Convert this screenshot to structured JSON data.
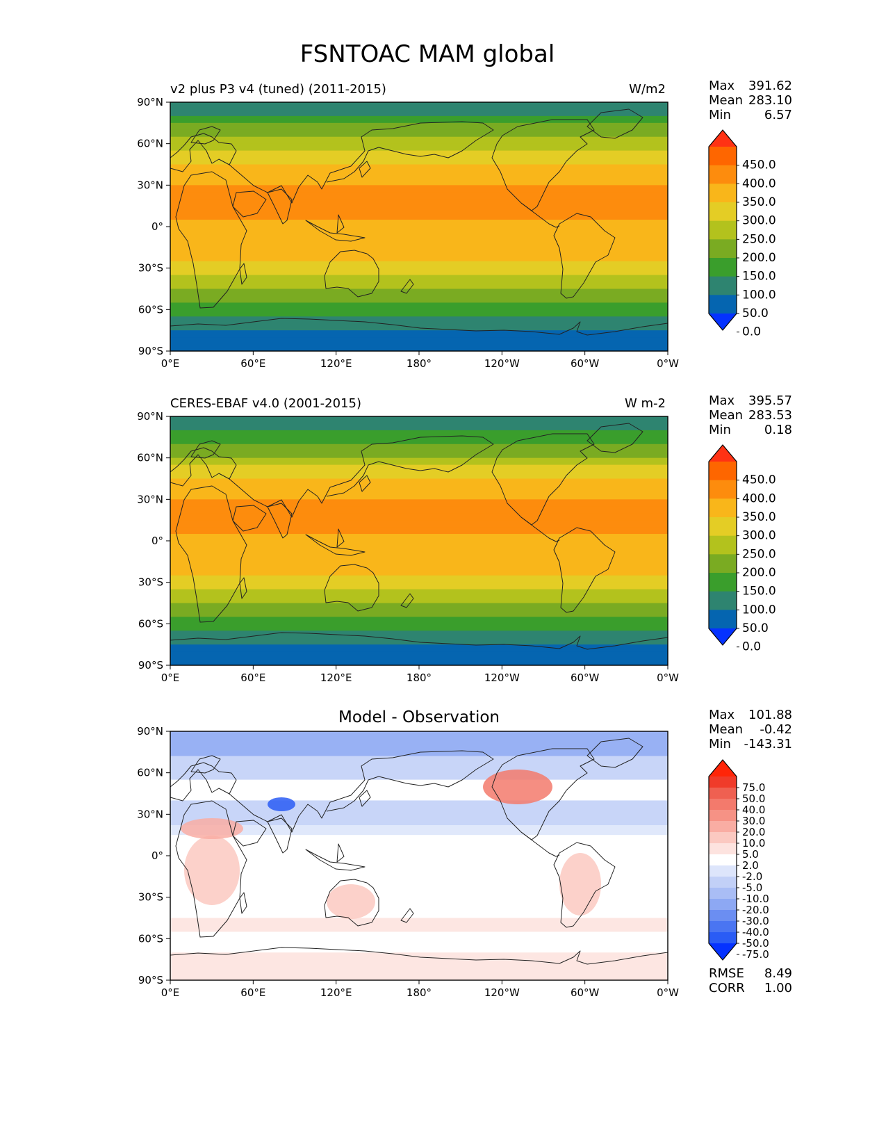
{
  "figure": {
    "title": "FSNTOAC MAM global"
  },
  "colors": {
    "abs": [
      "#0532ff",
      "#0565b0",
      "#2e8470",
      "#3a9e2c",
      "#7aab22",
      "#b3c21d",
      "#e4cd25",
      "#f9b61a",
      "#fd8c0d",
      "#fe6600",
      "#ff3214"
    ],
    "diff": [
      "#0532ff",
      "#2a5cf5",
      "#4a75f2",
      "#6b8ef2",
      "#8da8f3",
      "#a9bdf5",
      "#c2d0f7",
      "#dde5fb",
      "#ffffff",
      "#fde3df",
      "#fbc9c1",
      "#f9ada3",
      "#f69285",
      "#f37a6c",
      "#ef6051",
      "#f03b2a",
      "#ff2508"
    ]
  },
  "panels": [
    {
      "title_left": "v2 plus P3 v4 (tuned) (2011-2015)",
      "title_right": "W/m2",
      "title_center": "",
      "stats": [
        {
          "label": "Max",
          "value": "391.62"
        },
        {
          "label": "Mean",
          "value": "283.10"
        },
        {
          "label": "Min",
          "value": "6.57"
        }
      ]
    },
    {
      "title_left": "CERES-EBAF v4.0 (2001-2015)",
      "title_right": "W m-2",
      "title_center": "",
      "stats": [
        {
          "label": "Max",
          "value": "395.57"
        },
        {
          "label": "Mean",
          "value": "283.53"
        },
        {
          "label": "Min",
          "value": "0.18"
        }
      ]
    },
    {
      "title_left": "",
      "title_right": "",
      "title_center": "Model - Observation",
      "stats": [
        {
          "label": "Max",
          "value": "101.88"
        },
        {
          "label": "Mean",
          "value": "-0.42"
        },
        {
          "label": "Min",
          "value": "-143.31"
        }
      ],
      "extra_stats": [
        {
          "label": "RMSE",
          "value": "8.49"
        },
        {
          "label": "CORR",
          "value": "1.00"
        }
      ]
    }
  ],
  "axes": {
    "lat_ticks": [
      "90°N",
      "60°N",
      "30°N",
      "0°",
      "30°S",
      "60°S",
      "90°S"
    ],
    "lon_ticks": [
      "0°E",
      "60°E",
      "120°E",
      "180°",
      "120°W",
      "60°W",
      "0°W"
    ]
  },
  "colorbars": {
    "abs_labels": [
      "450.0",
      "400.0",
      "350.0",
      "300.0",
      "250.0",
      "200.0",
      "150.0",
      "100.0",
      "50.0",
      "0.0"
    ],
    "diff_labels": [
      "75.0",
      "50.0",
      "40.0",
      "30.0",
      "20.0",
      "10.0",
      "5.0",
      "2.0",
      "-2.0",
      "-5.0",
      "-10.0",
      "-20.0",
      "-30.0",
      "-40.0",
      "-50.0",
      "-75.0"
    ]
  },
  "chart_data": [
    {
      "type": "heatmap",
      "title": "v2 plus P3 v4 (tuned) (2011-2015)",
      "units": "W/m2",
      "x_ticks": [
        "0°E",
        "60°E",
        "120°E",
        "180°",
        "120°W",
        "60°W",
        "0°W"
      ],
      "y_ticks": [
        "90°N",
        "60°N",
        "30°N",
        "0°",
        "30°S",
        "60°S",
        "90°S"
      ],
      "levels": [
        0,
        50,
        100,
        150,
        200,
        250,
        300,
        350,
        400,
        450
      ],
      "zonal_profile": {
        "lat": [
          90,
          80,
          75,
          70,
          65,
          60,
          55,
          50,
          45,
          40,
          35,
          30,
          25,
          20,
          15,
          10,
          5,
          0,
          -5,
          -10,
          -15,
          -20,
          -25,
          -30,
          -35,
          -40,
          -45,
          -50,
          -55,
          -60,
          -65,
          -70,
          -75,
          -80,
          -90
        ],
        "value": [
          75,
          90,
          140,
          165,
          190,
          215,
          245,
          270,
          300,
          320,
          340,
          355,
          360,
          365,
          360,
          355,
          345,
          340,
          340,
          335,
          325,
          310,
          295,
          280,
          255,
          230,
          210,
          180,
          155,
          120,
          100,
          60,
          40,
          40,
          40
        ]
      },
      "stats": {
        "max": 391.62,
        "mean": 283.1,
        "min": 6.57
      }
    },
    {
      "type": "heatmap",
      "title": "CERES-EBAF v4.0 (2001-2015)",
      "units": "W m-2",
      "x_ticks": [
        "0°E",
        "60°E",
        "120°E",
        "180°",
        "120°W",
        "60°W",
        "0°W"
      ],
      "y_ticks": [
        "90°N",
        "60°N",
        "30°N",
        "0°",
        "30°S",
        "60°S",
        "90°S"
      ],
      "levels": [
        0,
        50,
        100,
        150,
        200,
        250,
        300,
        350,
        400,
        450
      ],
      "zonal_profile": {
        "lat": [
          90,
          80,
          75,
          70,
          65,
          60,
          55,
          50,
          45,
          40,
          35,
          30,
          25,
          20,
          15,
          10,
          5,
          0,
          -5,
          -10,
          -15,
          -20,
          -25,
          -30,
          -35,
          -40,
          -45,
          -50,
          -55,
          -60,
          -65,
          -70,
          -75,
          -80,
          -90
        ],
        "value": [
          75,
          90,
          135,
          160,
          185,
          210,
          240,
          265,
          300,
          320,
          340,
          355,
          360,
          365,
          360,
          355,
          345,
          340,
          340,
          335,
          325,
          310,
          295,
          280,
          255,
          230,
          210,
          180,
          155,
          120,
          100,
          60,
          40,
          40,
          40
        ]
      },
      "stats": {
        "max": 395.57,
        "mean": 283.53,
        "min": 0.18
      }
    },
    {
      "type": "heatmap",
      "title": "Model - Observation",
      "x_ticks": [
        "0°E",
        "60°E",
        "120°E",
        "180°",
        "120°W",
        "60°W",
        "0°W"
      ],
      "y_ticks": [
        "90°N",
        "60°N",
        "30°N",
        "0°",
        "30°S",
        "60°S",
        "90°S"
      ],
      "levels": [
        -75,
        -50,
        -40,
        -30,
        -20,
        -10,
        -5,
        -2,
        2,
        5,
        10,
        20,
        30,
        40,
        50,
        75
      ],
      "stats": {
        "max": 101.88,
        "mean": -0.42,
        "min": -143.31,
        "rmse": 8.49,
        "corr": 1.0
      }
    }
  ]
}
